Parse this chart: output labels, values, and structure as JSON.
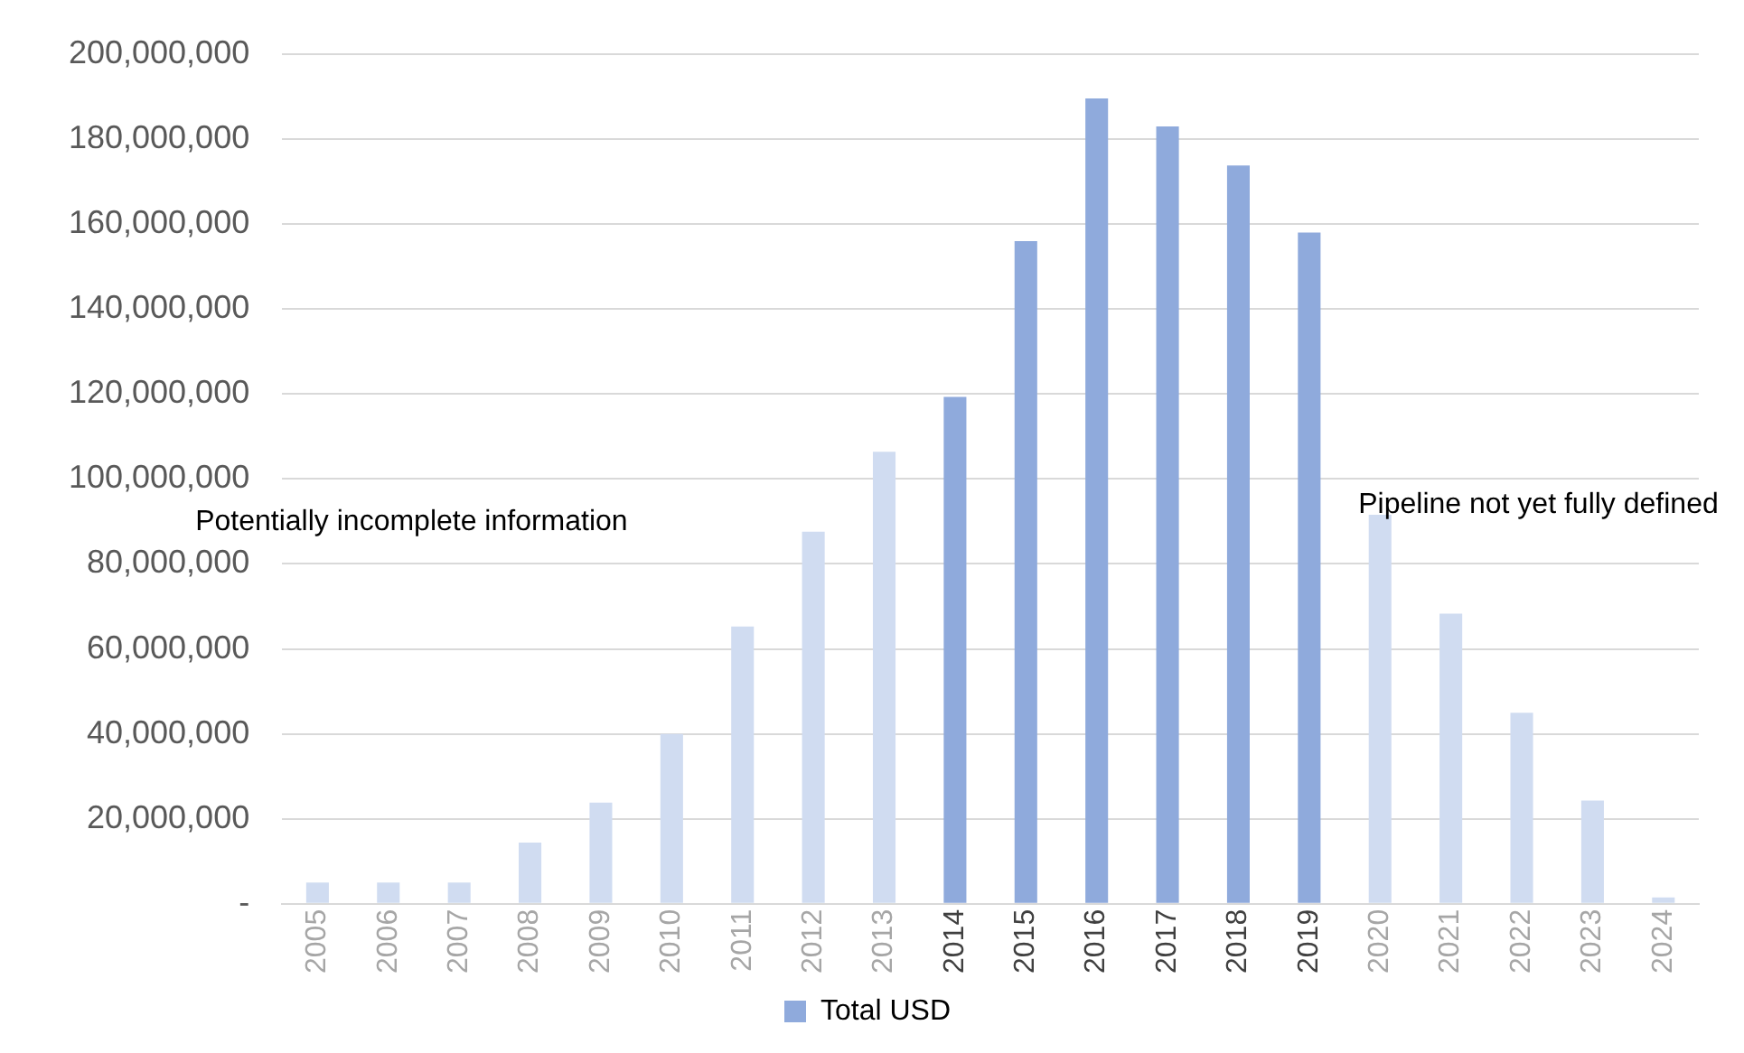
{
  "chart_data": {
    "type": "bar",
    "categories": [
      "2005",
      "2006",
      "2007",
      "2008",
      "2009",
      "2010",
      "2011",
      "2012",
      "2013",
      "2014",
      "2015",
      "2016",
      "2017",
      "2018",
      "2019",
      "2020",
      "2021",
      "2022",
      "2023",
      "2024"
    ],
    "series": [
      {
        "name": "Total USD",
        "color": "#8faadc",
        "values": [
          5000000,
          5000000,
          5000000,
          14400000,
          23800000,
          40000000,
          65300000,
          87600000,
          106400000,
          119300000,
          156000000,
          189600000,
          183000000,
          173800000,
          158000000,
          91600000,
          68300000,
          45000000,
          24300000,
          1500000
        ],
        "colors": [
          "#d0dcf1",
          "#d0dcf1",
          "#d0dcf1",
          "#d0dcf1",
          "#d0dcf1",
          "#d0dcf1",
          "#d0dcf1",
          "#d0dcf1",
          "#d0dcf1",
          "#8faadc",
          "#8faadc",
          "#8faadc",
          "#8faadc",
          "#8faadc",
          "#8faadc",
          "#d0dcf1",
          "#d0dcf1",
          "#d0dcf1",
          "#d0dcf1",
          "#d0dcf1"
        ]
      }
    ],
    "ylim": [
      0,
      200000000
    ],
    "yticks": [
      {
        "value": 0,
        "label": "-"
      },
      {
        "value": 20000000,
        "label": "20,000,000"
      },
      {
        "value": 40000000,
        "label": "40,000,000"
      },
      {
        "value": 60000000,
        "label": "60,000,000"
      },
      {
        "value": 80000000,
        "label": "80,000,000"
      },
      {
        "value": 100000000,
        "label": "100,000,000"
      },
      {
        "value": 120000000,
        "label": "120,000,000"
      },
      {
        "value": 140000000,
        "label": "140,000,000"
      },
      {
        "value": 160000000,
        "label": "160,000,000"
      },
      {
        "value": 180000000,
        "label": "180,000,000"
      },
      {
        "value": 200000000,
        "label": "200,000,000"
      }
    ],
    "grid": "y",
    "legend": "bottom",
    "annotations": [
      "Potentially incomplete information",
      "Pipeline not yet fully defined"
    ]
  }
}
